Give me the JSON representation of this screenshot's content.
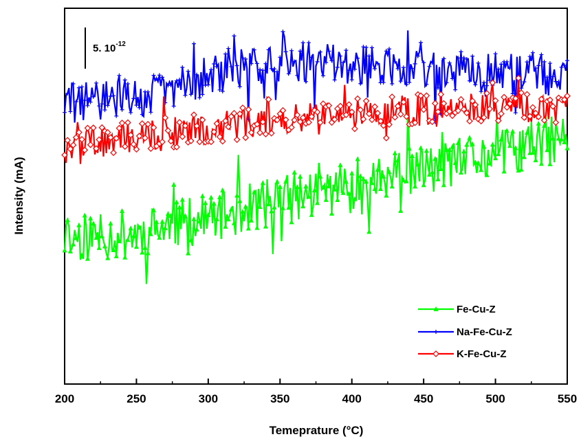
{
  "chart_data": {
    "type": "line",
    "title": "",
    "xlabel": "Temeprature (°C)",
    "ylabel": "Intensity (mA)",
    "xlim": [
      200,
      550
    ],
    "xticks": [
      "200",
      "250",
      "300",
      "350",
      "400",
      "450",
      "500",
      "550"
    ],
    "y_ticks_shown": false,
    "grid": false,
    "legend_position": "bottom-right",
    "scale_bar": {
      "base": "5. 10",
      "exponent": "-12"
    },
    "series": [
      {
        "name": "Fe-Cu-Z",
        "color": "#00ff00",
        "marker": "filled-triangle",
        "baseline": [
          [
            200,
            0.39
          ],
          [
            250,
            0.4
          ],
          [
            300,
            0.44
          ],
          [
            350,
            0.49
          ],
          [
            400,
            0.53
          ],
          [
            450,
            0.57
          ],
          [
            500,
            0.61
          ],
          [
            550,
            0.66
          ]
        ],
        "noise": 0.11
      },
      {
        "name": "Na-Fe-Cu-Z",
        "color": "#0000ff",
        "marker": "plus",
        "baseline": [
          [
            200,
            0.75
          ],
          [
            250,
            0.76
          ],
          [
            300,
            0.82
          ],
          [
            350,
            0.86
          ],
          [
            400,
            0.85
          ],
          [
            450,
            0.84
          ],
          [
            500,
            0.83
          ],
          [
            550,
            0.82
          ]
        ],
        "noise": 0.09
      },
      {
        "name": "K-Fe-Cu-Z",
        "color": "#ff0000",
        "marker": "open-diamond",
        "baseline": [
          [
            200,
            0.63
          ],
          [
            250,
            0.66
          ],
          [
            300,
            0.68
          ],
          [
            350,
            0.71
          ],
          [
            400,
            0.72
          ],
          [
            450,
            0.73
          ],
          [
            500,
            0.74
          ],
          [
            550,
            0.73
          ]
        ],
        "noise": 0.07
      }
    ]
  }
}
